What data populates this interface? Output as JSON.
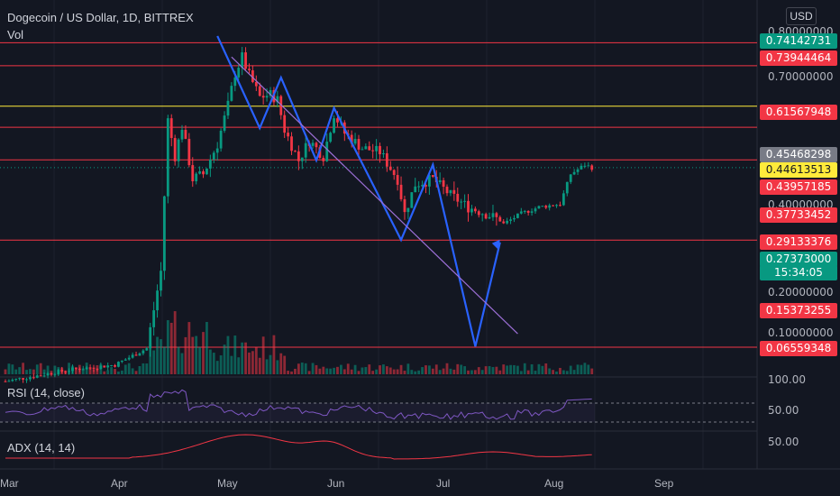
{
  "header": {
    "title": "Dogecoin / US Dollar, 1D, BITTREX",
    "vol_label": "Vol"
  },
  "currency": "USD",
  "price_ticks": [
    "0.80000000",
    "0.70000000",
    "0.40000000",
    "0.20000000",
    "0.10000000"
  ],
  "price_labels": [
    {
      "value": "0.74142731",
      "color": "#089981"
    },
    {
      "value": "0.73944464",
      "color": "#f23645"
    },
    {
      "value": "0.61567948",
      "color": "#f23645"
    },
    {
      "value": "0.45468298",
      "color": "#787b86"
    },
    {
      "value": "0.44613513",
      "color": "#ffeb3b"
    },
    {
      "value": "0.43957185",
      "color": "#f23645"
    },
    {
      "value": "0.37733452",
      "color": "#f23645"
    },
    {
      "value": "0.29133376",
      "color": "#f23645"
    },
    {
      "value": "0.27373000",
      "color": "#089981"
    },
    {
      "value": "15:34:05",
      "color": "#089981"
    },
    {
      "value": "0.15373255",
      "color": "#f23645"
    },
    {
      "value": "0.06559348",
      "color": "#f23645"
    }
  ],
  "x_ticks": [
    "Mar",
    "Apr",
    "May",
    "Jun",
    "Jul",
    "Aug",
    "Sep"
  ],
  "rsi": {
    "label": "RSI (14, close)",
    "ticks": [
      "100.00",
      "50.00"
    ]
  },
  "adx": {
    "label": "ADX (14, 14)",
    "ticks": [
      "50.00"
    ]
  },
  "colors": {
    "bg": "#131722",
    "up": "#089981",
    "down": "#f23645",
    "trend": "#2962ff",
    "diag": "#9c6fd6",
    "rsi": "#7e57c2",
    "adx": "#f23645"
  },
  "chart_data": {
    "type": "candlestick",
    "symbol": "Dogecoin / US Dollar",
    "interval": "1D",
    "exchange": "BITTREX",
    "scale": "log",
    "ylim": [
      0.045,
      0.9
    ],
    "horizontal_levels": [
      {
        "value": 0.73944464,
        "color": "#f23645"
      },
      {
        "value": 0.61567948,
        "color": "#f23645"
      },
      {
        "value": 0.44613513,
        "color": "#ffeb3b"
      },
      {
        "value": 0.37733452,
        "color": "#f23645"
      },
      {
        "value": 0.29133376,
        "color": "#f23645"
      },
      {
        "value": 0.15373255,
        "color": "#f23645"
      },
      {
        "value": 0.06559348,
        "color": "#f23645"
      }
    ],
    "last_price": 0.27373,
    "close_anchors": [
      [
        "2021-03-01",
        0.05
      ],
      [
        "2021-03-20",
        0.055
      ],
      [
        "2021-04-01",
        0.057
      ],
      [
        "2021-04-10",
        0.065
      ],
      [
        "2021-04-14",
        0.12
      ],
      [
        "2021-04-16",
        0.4
      ],
      [
        "2021-04-18",
        0.3
      ],
      [
        "2021-04-20",
        0.38
      ],
      [
        "2021-04-23",
        0.25
      ],
      [
        "2021-04-26",
        0.26
      ],
      [
        "2021-04-30",
        0.33
      ],
      [
        "2021-05-03",
        0.45
      ],
      [
        "2021-05-05",
        0.58
      ],
      [
        "2021-05-07",
        0.66
      ],
      [
        "2021-05-09",
        0.57
      ],
      [
        "2021-05-12",
        0.48
      ],
      [
        "2021-05-15",
        0.49
      ],
      [
        "2021-05-17",
        0.47
      ],
      [
        "2021-05-19",
        0.37
      ],
      [
        "2021-05-23",
        0.29
      ],
      [
        "2021-05-26",
        0.34
      ],
      [
        "2021-05-30",
        0.3
      ],
      [
        "2021-06-02",
        0.42
      ],
      [
        "2021-06-05",
        0.36
      ],
      [
        "2021-06-10",
        0.32
      ],
      [
        "2021-06-15",
        0.31
      ],
      [
        "2021-06-20",
        0.25
      ],
      [
        "2021-06-22",
        0.19
      ],
      [
        "2021-06-25",
        0.24
      ],
      [
        "2021-06-30",
        0.25
      ],
      [
        "2021-07-05",
        0.22
      ],
      [
        "2021-07-10",
        0.2
      ],
      [
        "2021-07-15",
        0.19
      ],
      [
        "2021-07-19",
        0.18
      ],
      [
        "2021-07-20",
        0.175
      ],
      [
        "2021-07-25",
        0.19
      ],
      [
        "2021-07-30",
        0.2
      ],
      [
        "2021-08-05",
        0.205
      ],
      [
        "2021-08-08",
        0.26
      ],
      [
        "2021-08-12",
        0.28
      ],
      [
        "2021-08-14",
        0.2737
      ]
    ],
    "trend_lines": [
      {
        "name": "zigzag",
        "color": "#2962ff",
        "points": [
          [
            "2021-04-30",
            0.78
          ],
          [
            "2021-05-12",
            0.375
          ],
          [
            "2021-05-18",
            0.56
          ],
          [
            "2021-05-28",
            0.29
          ],
          [
            "2021-06-02",
            0.44
          ],
          [
            "2021-06-21",
            0.154
          ],
          [
            "2021-06-30",
            0.28
          ],
          [
            "2021-07-12",
            0.066
          ],
          [
            "2021-07-19",
            0.151
          ]
        ]
      },
      {
        "name": "descending",
        "color": "#9c6fd6",
        "points": [
          [
            "2021-05-04",
            0.66
          ],
          [
            "2021-07-24",
            0.073
          ]
        ]
      }
    ],
    "x_range": [
      "2021-03-01",
      "2021-09-15"
    ]
  }
}
